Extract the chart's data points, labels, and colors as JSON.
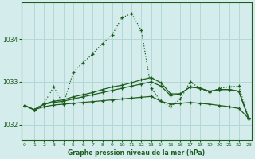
{
  "title": "Graphe pression niveau de la mer (hPa)",
  "bg_color": "#d4edec",
  "grid_color": "#b2d8d5",
  "line_color": "#1e5c1e",
  "xlim": [
    -0.3,
    23.3
  ],
  "ylim": [
    1031.65,
    1034.85
  ],
  "yticks": [
    1032,
    1033,
    1034
  ],
  "xticks": [
    0,
    1,
    2,
    3,
    4,
    5,
    6,
    7,
    8,
    9,
    10,
    11,
    12,
    13,
    14,
    15,
    16,
    17,
    18,
    19,
    20,
    21,
    22,
    23
  ],
  "series": [
    {
      "x": [
        0,
        1,
        2,
        3,
        4,
        5,
        6,
        7,
        8,
        9,
        10,
        11,
        12,
        13,
        14,
        15,
        16,
        17,
        18,
        19,
        20,
        21,
        22,
        23
      ],
      "y": [
        1032.45,
        1032.35,
        1032.5,
        1032.88,
        1032.48,
        1033.22,
        1033.45,
        1033.65,
        1033.9,
        1034.1,
        1034.5,
        1034.6,
        1034.2,
        1032.85,
        1032.55,
        1032.42,
        1032.6,
        1033.0,
        1032.85,
        1032.75,
        1032.85,
        1032.88,
        1032.9,
        1032.15
      ],
      "linestyle": "--",
      "marker": "+"
    },
    {
      "x": [
        0,
        1,
        2,
        3,
        4,
        5,
        6,
        7,
        8,
        9,
        10,
        11,
        12,
        13,
        14,
        15,
        16,
        17,
        18,
        19,
        20,
        21,
        22,
        23
      ],
      "y": [
        1032.45,
        1032.35,
        1032.48,
        1032.55,
        1032.58,
        1032.65,
        1032.7,
        1032.75,
        1032.82,
        1032.88,
        1032.92,
        1032.98,
        1033.05,
        1033.1,
        1032.98,
        1032.72,
        1032.72,
        1032.88,
        1032.85,
        1032.78,
        1032.82,
        1032.82,
        1032.78,
        1032.15
      ],
      "linestyle": "-",
      "marker": "+"
    },
    {
      "x": [
        0,
        1,
        2,
        3,
        4,
        5,
        6,
        7,
        8,
        9,
        10,
        11,
        12,
        13,
        14,
        15,
        16,
        17,
        18,
        19,
        20,
        21,
        22,
        23
      ],
      "y": [
        1032.45,
        1032.35,
        1032.42,
        1032.46,
        1032.48,
        1032.5,
        1032.52,
        1032.54,
        1032.56,
        1032.58,
        1032.6,
        1032.62,
        1032.64,
        1032.66,
        1032.55,
        1032.48,
        1032.5,
        1032.52,
        1032.5,
        1032.48,
        1032.45,
        1032.42,
        1032.38,
        1032.15
      ],
      "linestyle": "-",
      "marker": "+"
    },
    {
      "x": [
        0,
        1,
        2,
        3,
        4,
        5,
        6,
        7,
        8,
        9,
        10,
        11,
        12,
        13,
        14,
        15,
        16,
        17,
        18,
        19,
        20,
        21,
        22,
        23
      ],
      "y": [
        1032.45,
        1032.35,
        1032.48,
        1032.52,
        1032.55,
        1032.6,
        1032.65,
        1032.7,
        1032.75,
        1032.8,
        1032.85,
        1032.9,
        1032.95,
        1033.0,
        1032.9,
        1032.68,
        1032.72,
        1032.88,
        1032.85,
        1032.78,
        1032.82,
        1032.82,
        1032.78,
        1032.15
      ],
      "linestyle": "-",
      "marker": "+"
    }
  ]
}
